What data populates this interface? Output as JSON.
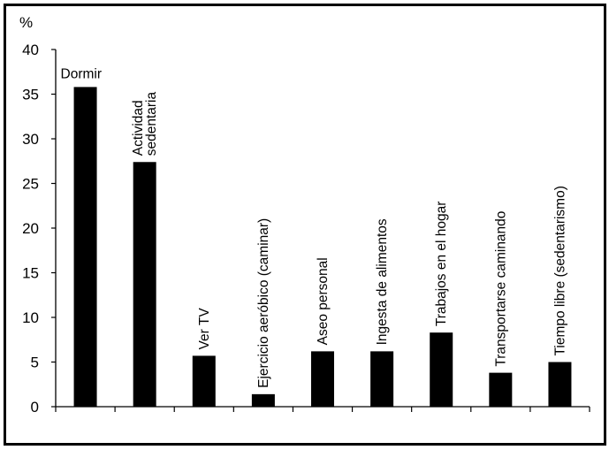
{
  "chart_data": {
    "type": "bar",
    "ylabel": "%",
    "ylim": [
      0,
      40
    ],
    "yticks": [
      0,
      5,
      10,
      15,
      20,
      25,
      30,
      35,
      40
    ],
    "grid": false,
    "legend": "none",
    "bar_color": "#000000",
    "categories": [
      [
        "Dormir"
      ],
      [
        "Actividad",
        "sedentaria"
      ],
      [
        "Ver TV"
      ],
      [
        "Ejercicio aeróbico (caminar)"
      ],
      [
        "Aseo personal"
      ],
      [
        "Ingesta de alimentos"
      ],
      [
        "Trabajos en el hogar"
      ],
      [
        "Transportarse caminando"
      ],
      [
        "Tiempo libre (sedentarismo)"
      ]
    ],
    "values": [
      35.8,
      27.4,
      5.7,
      1.4,
      6.2,
      6.2,
      8.3,
      3.8,
      5.0
    ]
  }
}
